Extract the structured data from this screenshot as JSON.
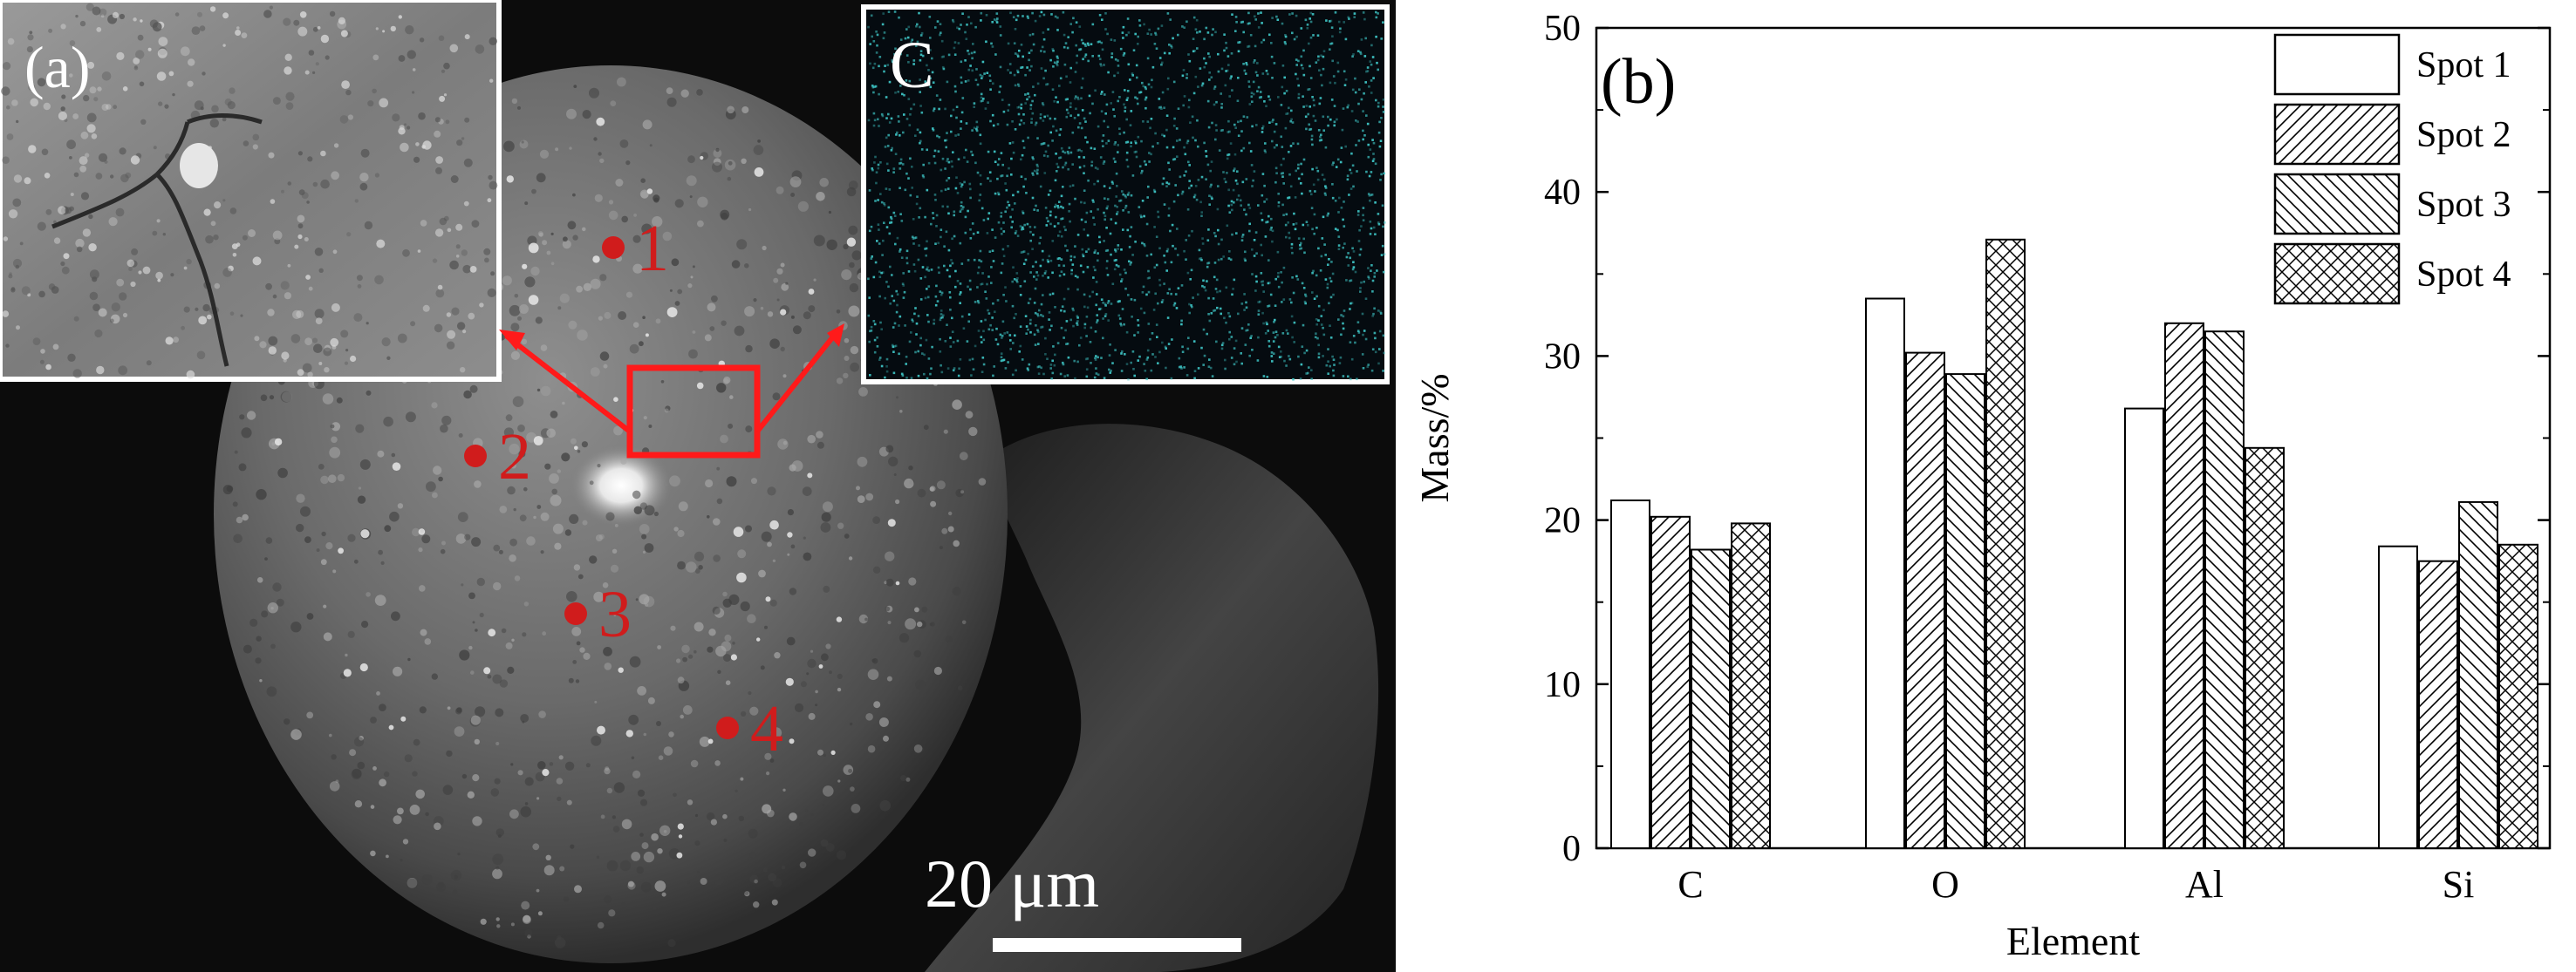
{
  "panel_a": {
    "label": "(a)",
    "map_label": "C",
    "scale_bar": "20 μm",
    "spots": [
      "1",
      "2",
      "3",
      "4"
    ],
    "spot_color": "#d01c1c",
    "map_color": "#3fc8c8"
  },
  "panel_b": {
    "label": "(b)"
  },
  "chart_data": {
    "type": "bar",
    "categories": [
      "C",
      "O",
      "Al",
      "Si"
    ],
    "series": [
      {
        "name": "Spot 1",
        "values": [
          21.2,
          33.5,
          26.8,
          18.4
        ],
        "pattern": "none"
      },
      {
        "name": "Spot 2",
        "values": [
          20.2,
          30.2,
          32.0,
          17.5
        ],
        "pattern": "diag-right"
      },
      {
        "name": "Spot 3",
        "values": [
          18.2,
          28.9,
          31.5,
          21.1
        ],
        "pattern": "diag-left"
      },
      {
        "name": "Spot 4",
        "values": [
          19.8,
          37.1,
          24.4,
          18.5
        ],
        "pattern": "cross"
      }
    ],
    "xlabel": "Element",
    "ylabel": "Mass/%",
    "ylim": [
      0,
      50
    ],
    "yticks": [
      0,
      10,
      20,
      30,
      40,
      50
    ],
    "grid": false,
    "legend": "top-right"
  }
}
